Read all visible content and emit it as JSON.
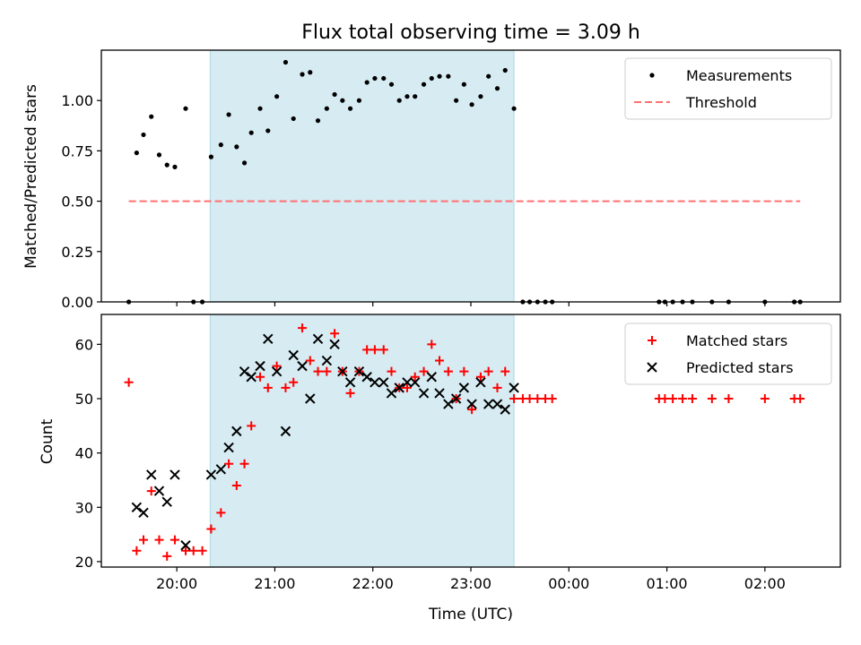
{
  "chart_data": [
    {
      "type": "scatter",
      "title": "Flux total observing time = 3.09 h",
      "xlabel": "",
      "ylabel": "Matched/Predicted stars",
      "ylim": [
        0,
        1.25
      ],
      "yticks": [
        0.0,
        0.25,
        0.5,
        0.75,
        1.0
      ],
      "ytick_labels": [
        "0.00",
        "0.25",
        "0.50",
        "0.75",
        "1.00"
      ],
      "xlim": [
        19.23,
        26.77
      ],
      "xticks": [
        20,
        21,
        22,
        23,
        24,
        25,
        26
      ],
      "xtick_labels": [
        "20:00",
        "21:00",
        "22:00",
        "23:00",
        "00:00",
        "01:00",
        "02:00"
      ],
      "shaded_span": [
        20.34,
        23.44
      ],
      "legend_position": "upper right",
      "series": [
        {
          "name": "Measurements",
          "kind": "points",
          "color": "#000000",
          "x": [
            19.51,
            19.59,
            19.66,
            19.74,
            19.82,
            19.9,
            19.98,
            20.09,
            20.17,
            20.26,
            20.35,
            20.45,
            20.53,
            20.61,
            20.69,
            20.76,
            20.85,
            20.93,
            21.02,
            21.11,
            21.19,
            21.28,
            21.36,
            21.44,
            21.53,
            21.61,
            21.69,
            21.77,
            21.86,
            21.94,
            22.02,
            22.11,
            22.19,
            22.27,
            22.35,
            22.43,
            22.52,
            22.6,
            22.68,
            22.77,
            22.85,
            22.93,
            23.01,
            23.1,
            23.18,
            23.27,
            23.35,
            23.44,
            23.53,
            23.6,
            23.68,
            23.76,
            23.83,
            24.92,
            24.98,
            25.06,
            25.16,
            25.26,
            25.46,
            25.63,
            26.0,
            26.3,
            26.36
          ],
          "y": [
            0.0,
            0.74,
            0.83,
            0.92,
            0.73,
            0.68,
            0.67,
            0.96,
            0.0,
            0.0,
            0.72,
            0.78,
            0.93,
            0.77,
            0.69,
            0.84,
            0.96,
            0.85,
            1.02,
            1.19,
            0.91,
            1.13,
            1.14,
            0.9,
            0.96,
            1.03,
            1.0,
            0.96,
            1.0,
            1.09,
            1.11,
            1.11,
            1.08,
            1.0,
            1.02,
            1.02,
            1.08,
            1.11,
            1.12,
            1.12,
            1.0,
            1.08,
            0.98,
            1.02,
            1.12,
            1.06,
            1.15,
            0.96,
            0.0,
            0.0,
            0.0,
            0.0,
            0.0,
            0.0,
            0.0,
            0.0,
            0.0,
            0.0,
            0.0,
            0.0,
            0.0,
            0.0,
            0.0
          ]
        },
        {
          "name": "Threshold",
          "kind": "dashed-line",
          "color": "#ff7070",
          "x": [
            19.51,
            26.36
          ],
          "y": [
            0.5,
            0.5
          ]
        }
      ]
    },
    {
      "type": "scatter",
      "title": "",
      "xlabel": "Time (UTC)",
      "ylabel": "Count",
      "ylim": [
        19,
        65.5
      ],
      "yticks": [
        20,
        30,
        40,
        50,
        60
      ],
      "ytick_labels": [
        "20",
        "30",
        "40",
        "50",
        "60"
      ],
      "xlim": [
        19.23,
        26.77
      ],
      "xticks": [
        20,
        21,
        22,
        23,
        24,
        25,
        26
      ],
      "xtick_labels": [
        "20:00",
        "21:00",
        "22:00",
        "23:00",
        "00:00",
        "01:00",
        "02:00"
      ],
      "shaded_span": [
        20.34,
        23.44
      ],
      "legend_position": "upper right",
      "series": [
        {
          "name": "Matched stars",
          "marker": "plus",
          "color": "#ff0000",
          "x": [
            19.51,
            19.59,
            19.66,
            19.74,
            19.82,
            19.9,
            19.98,
            20.09,
            20.17,
            20.26,
            20.35,
            20.45,
            20.53,
            20.61,
            20.69,
            20.76,
            20.85,
            20.93,
            21.02,
            21.11,
            21.19,
            21.28,
            21.36,
            21.44,
            21.53,
            21.61,
            21.69,
            21.77,
            21.86,
            21.94,
            22.02,
            22.11,
            22.19,
            22.27,
            22.35,
            22.43,
            22.52,
            22.6,
            22.68,
            22.77,
            22.85,
            22.93,
            23.01,
            23.1,
            23.18,
            23.27,
            23.35,
            23.44,
            23.53,
            23.6,
            23.68,
            23.76,
            23.83,
            24.92,
            24.98,
            25.06,
            25.16,
            25.26,
            25.46,
            25.63,
            26.0,
            26.3,
            26.36
          ],
          "y": [
            53,
            22,
            24,
            33,
            24,
            21,
            24,
            22,
            22,
            22,
            26,
            29,
            38,
            34,
            38,
            45,
            54,
            52,
            56,
            52,
            53,
            63,
            57,
            55,
            55,
            62,
            55,
            51,
            55,
            59,
            59,
            59,
            55,
            52,
            52,
            54,
            55,
            60,
            57,
            55,
            50,
            55,
            48,
            54,
            55,
            52,
            55,
            50,
            50,
            50,
            50,
            50,
            50,
            50,
            50,
            50,
            50,
            50,
            50,
            50,
            50,
            50,
            50
          ]
        },
        {
          "name": "Predicted stars",
          "marker": "x",
          "color": "#000000",
          "x": [
            19.59,
            19.66,
            19.74,
            19.82,
            19.9,
            19.98,
            20.09,
            20.35,
            20.45,
            20.53,
            20.61,
            20.69,
            20.76,
            20.85,
            20.93,
            21.02,
            21.11,
            21.19,
            21.28,
            21.36,
            21.44,
            21.53,
            21.61,
            21.69,
            21.77,
            21.86,
            21.94,
            22.02,
            22.11,
            22.19,
            22.27,
            22.35,
            22.43,
            22.52,
            22.6,
            22.68,
            22.77,
            22.85,
            22.93,
            23.01,
            23.1,
            23.18,
            23.27,
            23.35,
            23.44
          ],
          "y": [
            30,
            29,
            36,
            33,
            31,
            36,
            23,
            36,
            37,
            41,
            44,
            55,
            54,
            56,
            61,
            55,
            44,
            58,
            56,
            50,
            61,
            57,
            60,
            55,
            53,
            55,
            54,
            53,
            53,
            51,
            52,
            53,
            53,
            51,
            54,
            51,
            49,
            50,
            52,
            49,
            53,
            49,
            49,
            48,
            52
          ]
        }
      ]
    }
  ]
}
